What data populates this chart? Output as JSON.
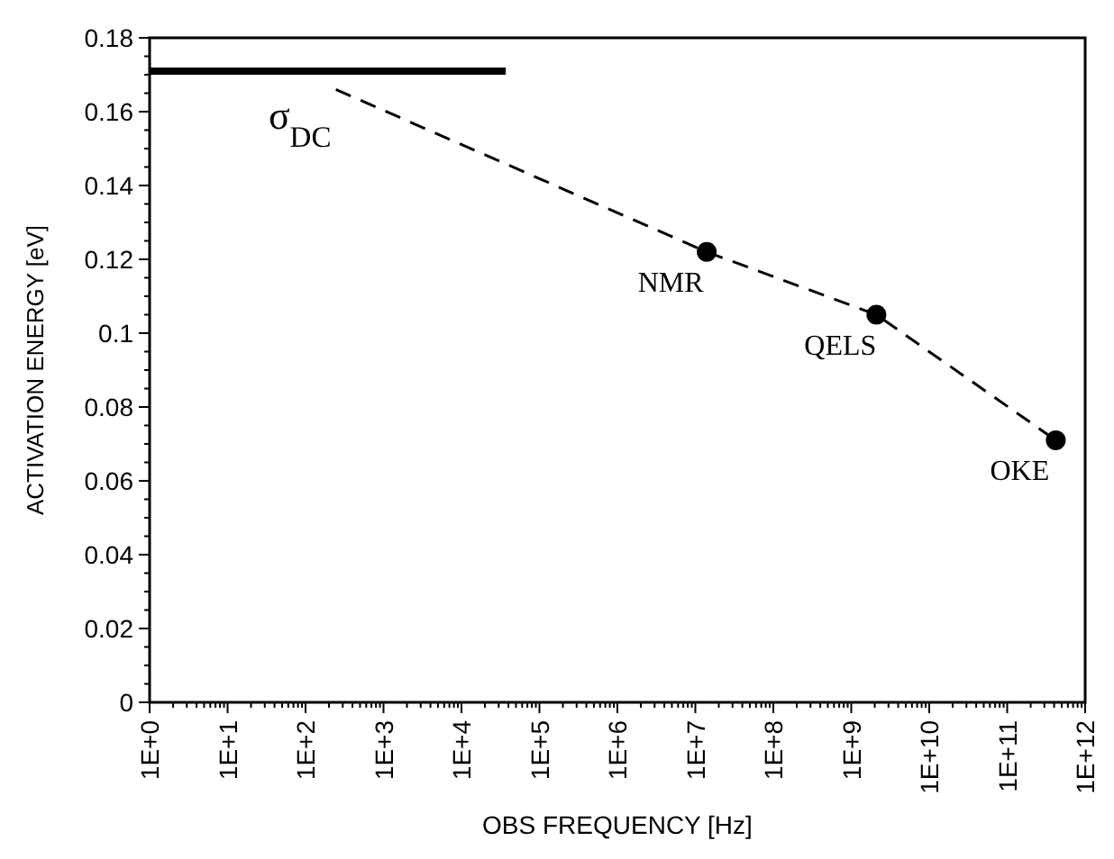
{
  "chart_data": {
    "type": "line",
    "xlabel": "OBS FREQUENCY [Hz]",
    "ylabel": "ACTIVATION ENERGY [eV]",
    "log": "x",
    "xlim": [
      1,
      1000000000000.0
    ],
    "xticks": [
      {
        "value": 1,
        "label": "1E+0"
      },
      {
        "value": 10,
        "label": "1E+1"
      },
      {
        "value": 100,
        "label": "1E+2"
      },
      {
        "value": 1000,
        "label": "1E+3"
      },
      {
        "value": 10000,
        "label": "1E+4"
      },
      {
        "value": 100000,
        "label": "1E+5"
      },
      {
        "value": 1000000,
        "label": "1E+6"
      },
      {
        "value": 10000000,
        "label": "1E+7"
      },
      {
        "value": 100000000,
        "label": "1E+8"
      },
      {
        "value": 1000000000,
        "label": "1E+9"
      },
      {
        "value": 10000000000,
        "label": "1E+10"
      },
      {
        "value": 100000000000,
        "label": "1E+11"
      },
      {
        "value": 1000000000000,
        "label": "1E+12"
      }
    ],
    "ylim": [
      0,
      0.18
    ],
    "yticks": [
      0,
      0.02,
      0.04,
      0.06,
      0.08,
      0.1,
      0.12,
      0.14,
      0.16,
      0.18
    ],
    "grid": false,
    "series": [
      {
        "color": "#000000",
        "line_style": "solid",
        "marker": "none",
        "x": [
          1,
          37000
        ],
        "values": [
          0.171,
          0.171
        ]
      },
      {
        "color": "#000000",
        "line_style": "dashed",
        "marker": "none",
        "x": [
          245,
          14000000,
          2100000000,
          420000000000
        ],
        "values": [
          0.166,
          0.122,
          0.105,
          0.071
        ]
      },
      {
        "type": "scatter",
        "color": "#000000",
        "marker": "circle",
        "x": [
          14000000,
          2100000000,
          420000000000
        ],
        "values": [
          0.122,
          0.105,
          0.071
        ]
      }
    ],
    "annotations": [
      {
        "text": "σ$_{DC}$",
        "x": 245,
        "y": 0.166
      },
      {
        "text": "NMR",
        "x": 14000000,
        "y": 0.122
      },
      {
        "text": "QELS",
        "x": 2100000000,
        "y": 0.105
      },
      {
        "text": "OKE",
        "x": 420000000000,
        "y": 0.071
      }
    ]
  }
}
